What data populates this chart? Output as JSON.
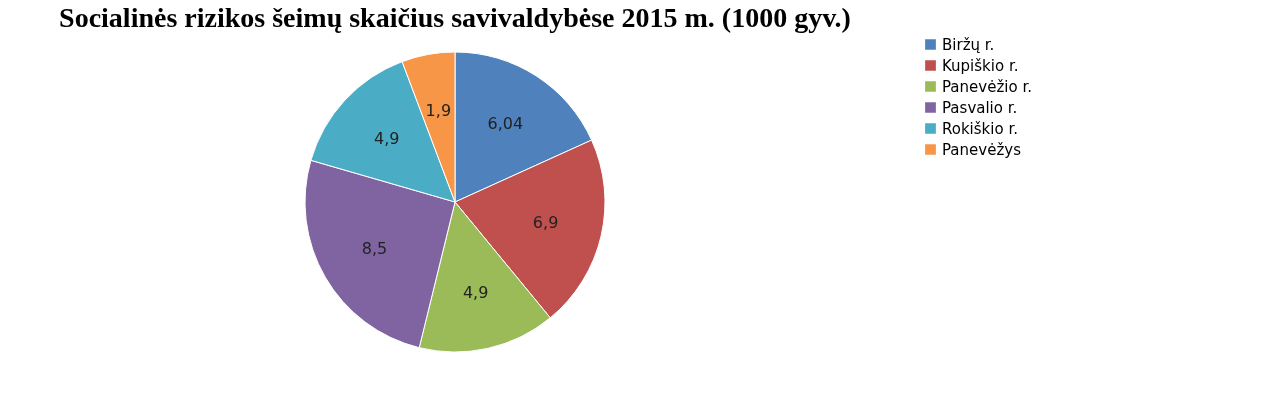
{
  "chart_data": {
    "type": "pie",
    "title": "Socialinės rizikos šeimų skaičius savivaldybėse 2015 m. (1000 gyv.)",
    "categories": [
      "Biržų r.",
      "Kupiškio r.",
      "Panevėžio r.",
      "Pasvalio r.",
      "Rokiškio r.",
      "Panevėžys"
    ],
    "values": [
      6.04,
      6.9,
      4.9,
      8.5,
      4.9,
      1.9
    ],
    "value_labels": [
      "6,04",
      "6,9",
      "4,9",
      "8,5",
      "4,9",
      "1,9"
    ],
    "colors": [
      "#4f81bd",
      "#c0504d",
      "#9bbb59",
      "#8064a2",
      "#4bacc6",
      "#f79646"
    ],
    "legend": "right"
  }
}
